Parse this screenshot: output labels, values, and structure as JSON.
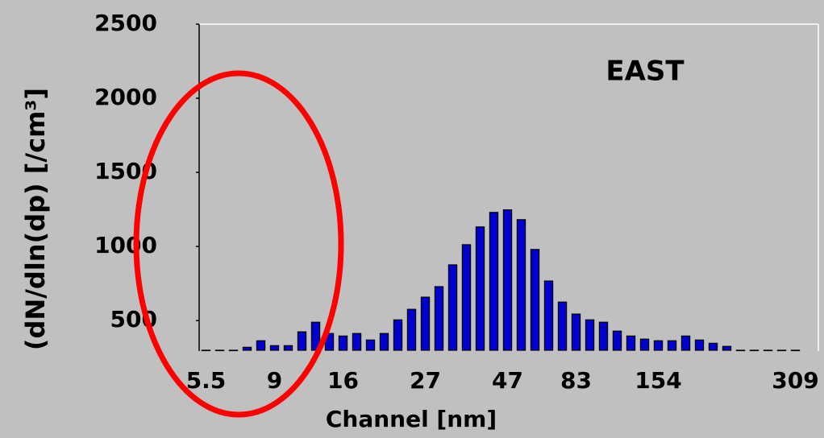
{
  "chart_data": {
    "type": "bar",
    "annotation": "EAST",
    "xlabel": "Channel [nm]",
    "ylabel": "(dN/dln(dp) [/cm³]",
    "categories": [
      "5.5",
      null,
      null,
      null,
      null,
      "9",
      null,
      null,
      null,
      null,
      "16",
      null,
      null,
      null,
      null,
      null,
      "27",
      null,
      null,
      null,
      null,
      null,
      "47",
      null,
      null,
      null,
      null,
      "83",
      null,
      null,
      null,
      null,
      null,
      "154",
      null,
      null,
      null,
      null,
      null,
      null,
      null,
      null,
      null,
      "309"
    ],
    "values": [
      300,
      300,
      300,
      320,
      364,
      331,
      331,
      424,
      489,
      413,
      396,
      413,
      369,
      413,
      505,
      576,
      658,
      729,
      876,
      1012,
      1132,
      1230,
      1247,
      1181,
      980,
      767,
      625,
      544,
      505,
      489,
      429,
      396,
      375,
      364,
      364,
      396,
      369,
      347,
      326,
      300,
      300,
      300,
      300,
      300
    ],
    "color": "#0000cc",
    "ylim": [
      300,
      2500
    ],
    "yticks": [
      500,
      1000,
      1500,
      2000,
      2500
    ]
  }
}
